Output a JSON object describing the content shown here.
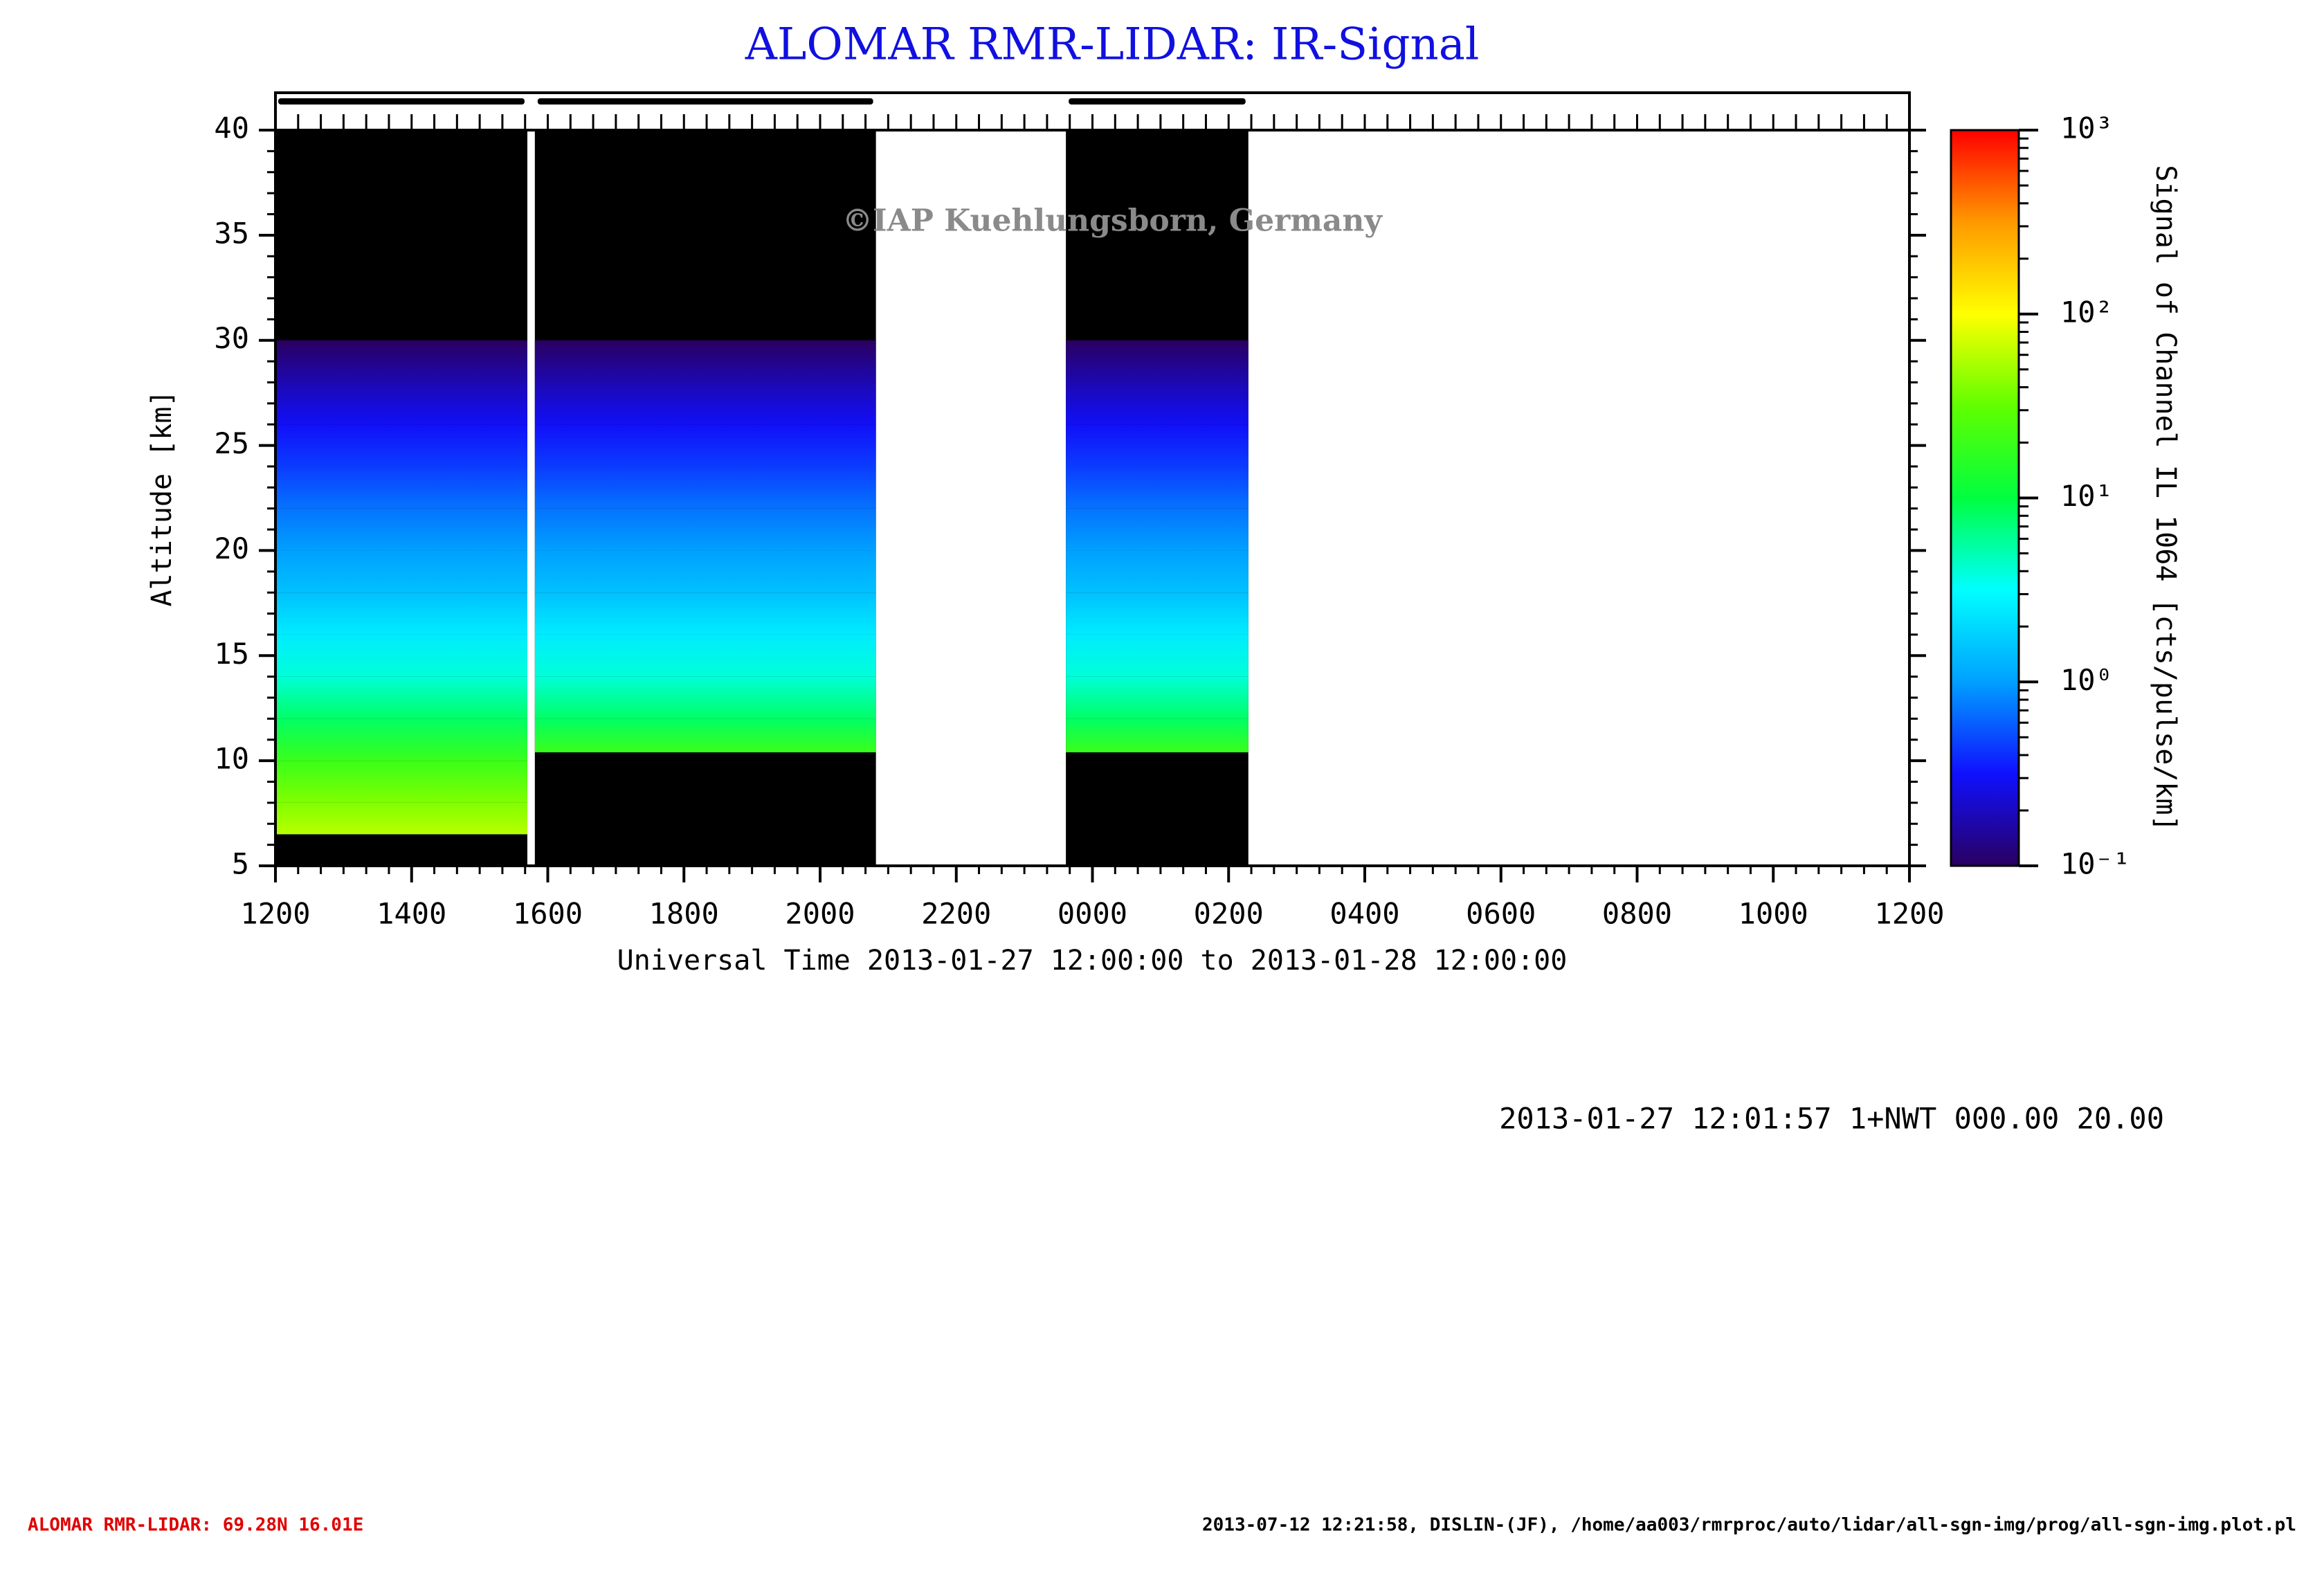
{
  "title": "ALOMAR RMR-LIDAR: IR-Signal",
  "watermark": "©IAP Kuehlungsborn, Germany",
  "chart_data": {
    "type": "heatmap",
    "x_label": "Universal Time 2013-01-27 12:00:00 to 2013-01-28 12:00:00",
    "y_label": "Altitude [km]",
    "colorbar_label": "Signal of Channel IL 1064 [cts/pulse/km]",
    "xlim": [
      12,
      36
    ],
    "xticks": [
      {
        "value": 12,
        "label": "1200"
      },
      {
        "value": 14,
        "label": "1400"
      },
      {
        "value": 16,
        "label": "1600"
      },
      {
        "value": 18,
        "label": "1800"
      },
      {
        "value": 20,
        "label": "2000"
      },
      {
        "value": 22,
        "label": "2200"
      },
      {
        "value": 24,
        "label": "0000"
      },
      {
        "value": 26,
        "label": "0200"
      },
      {
        "value": 28,
        "label": "0400"
      },
      {
        "value": 30,
        "label": "0600"
      },
      {
        "value": 32,
        "label": "0800"
      },
      {
        "value": 34,
        "label": "1000"
      },
      {
        "value": 36,
        "label": "1200"
      }
    ],
    "ylim": [
      5,
      40
    ],
    "yticks": [
      5,
      10,
      15,
      20,
      25,
      30,
      35,
      40
    ],
    "clim": [
      0.1,
      1000
    ],
    "color_scale": "log",
    "cticks": [
      {
        "value": 0.1,
        "label": "10⁻¹"
      },
      {
        "value": 1,
        "label": "10⁰"
      },
      {
        "value": 10,
        "label": "10¹"
      },
      {
        "value": 100,
        "label": "10²"
      },
      {
        "value": 1000,
        "label": "10³"
      }
    ],
    "colormap": [
      "#2a0060",
      "#1010ff",
      "#00a0ff",
      "#00ffff",
      "#00ff40",
      "#60ff00",
      "#ffff00",
      "#ff9900",
      "#ff0000"
    ],
    "segments": [
      {
        "start": 12.0,
        "end": 15.7,
        "bottom": 6.5
      },
      {
        "start": 15.81,
        "end": 20.82,
        "bottom": 10.4
      },
      {
        "start": 23.61,
        "end": 26.29,
        "bottom": 10.4
      }
    ],
    "profile": {
      "altitude": [
        6.5,
        8,
        10,
        12,
        14,
        16,
        18,
        20,
        22,
        24,
        26,
        28,
        30
      ],
      "values": [
        60,
        40,
        20,
        8,
        4,
        2.5,
        1.5,
        1,
        0.7,
        0.45,
        0.3,
        0.18,
        0.1
      ]
    }
  },
  "status_line": "2013-01-27 12:01:57 1+NWT 000.00 20.00",
  "footer_left": "ALOMAR RMR-LIDAR: 69.28N 16.01E",
  "footer_right": "2013-07-12 12:21:58, DISLIN-(JF), /home/aa003/rmrproc/auto/lidar/all-sgn-img/prog/all-sgn-img.plot.pl"
}
